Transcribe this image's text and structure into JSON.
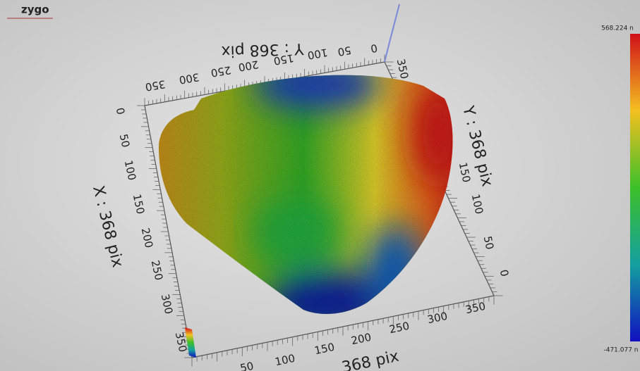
{
  "logo": "zygo",
  "colorbar": {
    "max_label": "568.224 n",
    "min_label": "-471.077 n"
  },
  "axes": {
    "back": {
      "title": "Y : 368 pix",
      "ticks": [
        "0",
        "50",
        "100",
        "150",
        "200",
        "250",
        "300",
        "350"
      ]
    },
    "left": {
      "title": "X : 368 pix",
      "ticks": [
        "0",
        "50",
        "100",
        "150",
        "200",
        "250",
        "300",
        "350"
      ]
    },
    "front": {
      "title": "368 pix",
      "ticks": [
        "50",
        "100",
        "150",
        "200",
        "250",
        "300",
        "350"
      ]
    },
    "right": {
      "title": "Y : 368 pix",
      "ticks": [
        "0",
        "50",
        "100",
        "150"
      ],
      "corner_tick": "350"
    }
  }
}
